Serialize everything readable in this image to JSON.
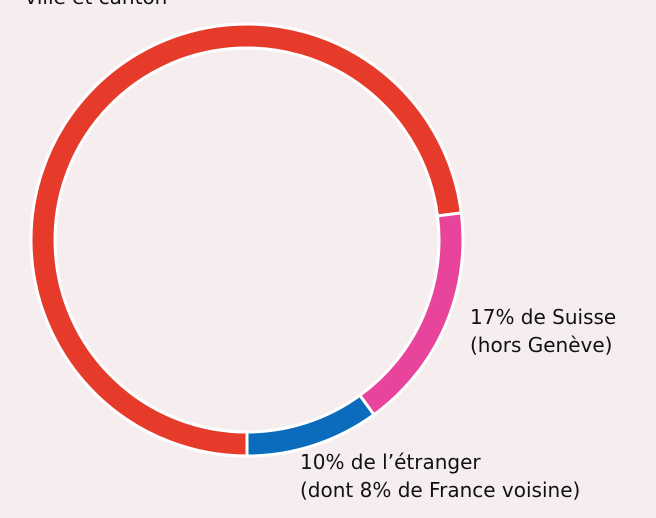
{
  "chart_data": {
    "type": "donut",
    "labels": [
      [
        "ville et canton"
      ],
      [
        "17% de Suisse",
        "(hors Genève)"
      ],
      [
        "10% de l’étranger",
        "(dont 8% de France voisine)"
      ]
    ],
    "values": [
      73,
      17,
      10
    ],
    "colors": [
      "#e63a2b",
      "#e8449b",
      "#0b6cbd"
    ]
  }
}
